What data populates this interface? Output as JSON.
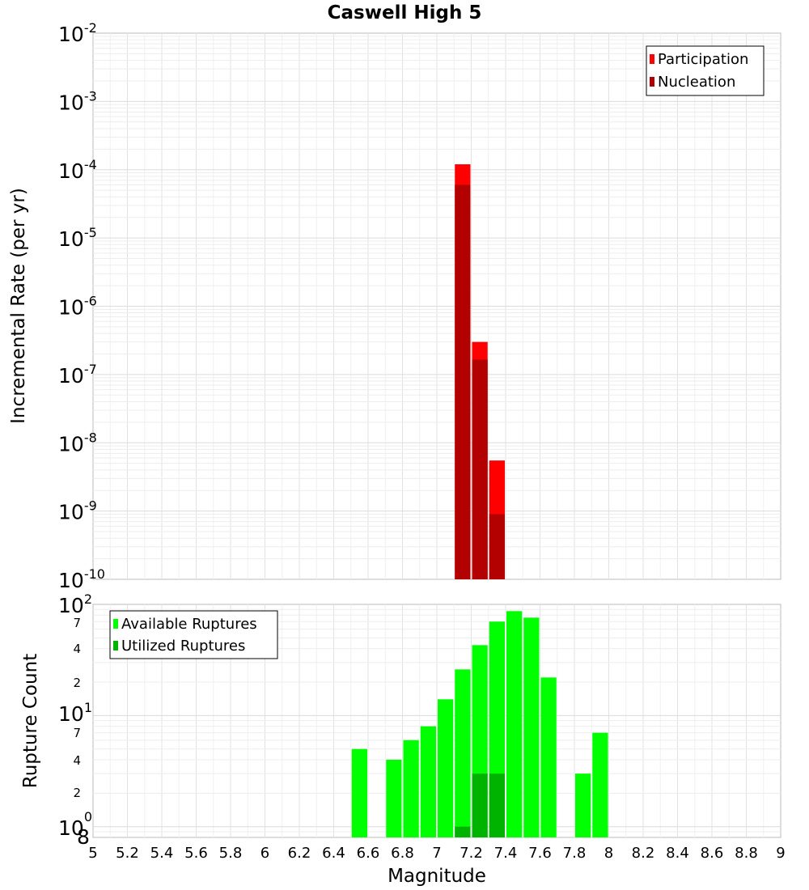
{
  "chart_data": [
    {
      "id": "top",
      "type": "bar",
      "title": "Caswell High 5",
      "xlabel": "",
      "ylabel": "Incremental Rate (per yr)",
      "xlim": [
        5,
        9
      ],
      "ylim": [
        1e-10,
        0.01
      ],
      "yscale": "log",
      "bin_width": 0.1,
      "decades": [
        {
          "base": "10",
          "exp": "-2"
        },
        {
          "base": "10",
          "exp": "-3"
        },
        {
          "base": "10",
          "exp": "-4"
        },
        {
          "base": "10",
          "exp": "-5"
        },
        {
          "base": "10",
          "exp": "-6"
        },
        {
          "base": "10",
          "exp": "-7"
        },
        {
          "base": "10",
          "exp": "-8"
        },
        {
          "base": "10",
          "exp": "-9"
        },
        {
          "base": "10",
          "exp": "-10"
        }
      ],
      "legend": {
        "placement": "top-right",
        "entries": [
          "Participation",
          "Nucleation"
        ]
      },
      "series": [
        {
          "name": "Participation",
          "color": "#ff0000",
          "x": [
            7.15,
            7.25,
            7.35
          ],
          "values": [
            0.00012,
            3e-07,
            5.5e-09
          ]
        },
        {
          "name": "Nucleation",
          "color": "#b30000",
          "x": [
            7.15,
            7.25,
            7.35
          ],
          "values": [
            6e-05,
            1.65e-07,
            9e-10
          ]
        }
      ]
    },
    {
      "id": "bottom",
      "type": "bar",
      "title": "",
      "xlabel": "Magnitude",
      "ylabel": "Rupture Count",
      "xlim": [
        5,
        9
      ],
      "ylim": [
        0.8,
        100
      ],
      "yscale": "log",
      "bin_width": 0.1,
      "x_ticks": [
        "5",
        "5.2",
        "5.4",
        "5.6",
        "5.8",
        "6",
        "6.2",
        "6.4",
        "6.6",
        "6.8",
        "7",
        "7.2",
        "7.4",
        "7.6",
        "7.8",
        "8",
        "8.2",
        "8.4",
        "8.6",
        "8.8",
        "9"
      ],
      "y_labels": {
        "decade_top": {
          "base": "10",
          "exp": "2"
        },
        "decade_mid": {
          "base": "10",
          "exp": "1"
        },
        "decade_bottom": {
          "base": "10",
          "exp": "0"
        },
        "minor_upper": [
          "7",
          "4",
          "2"
        ],
        "minor_lower": [
          "7",
          "4",
          "2"
        ],
        "bottom_value": "8"
      },
      "legend": {
        "placement": "top-left",
        "entries": [
          "Available Ruptures",
          "Utilized Ruptures"
        ]
      },
      "series": [
        {
          "name": "Available Ruptures",
          "color": "#00ff00",
          "x": [
            6.55,
            6.75,
            6.85,
            6.95,
            7.05,
            7.15,
            7.25,
            7.35,
            7.45,
            7.55,
            7.65,
            7.85,
            7.95
          ],
          "values": [
            5,
            4,
            6,
            8,
            14,
            26,
            43,
            70,
            87,
            76,
            22,
            3,
            7
          ]
        },
        {
          "name": "Utilized Ruptures",
          "color": "#00b300",
          "x": [
            7.15,
            7.25,
            7.35
          ],
          "values": [
            1,
            3,
            3
          ]
        }
      ]
    }
  ]
}
